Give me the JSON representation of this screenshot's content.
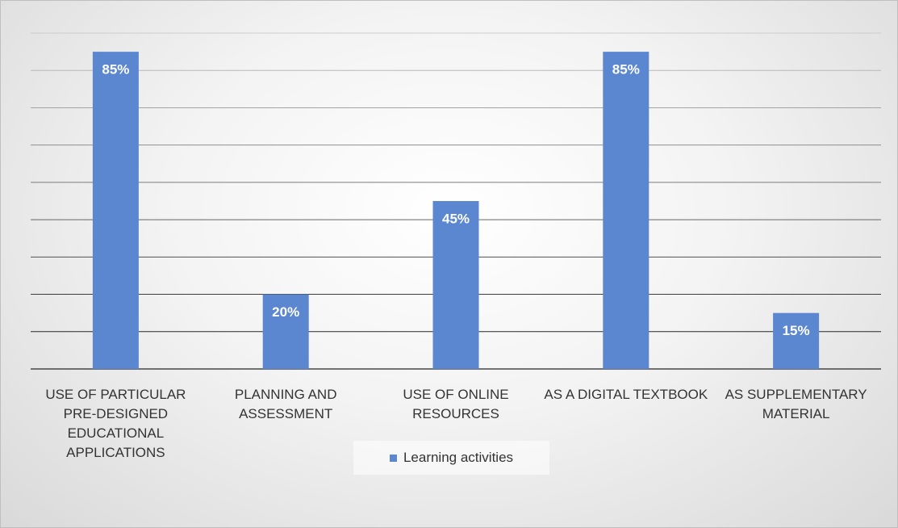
{
  "chart_data": {
    "type": "bar",
    "categories": [
      "USE OF PARTICULAR PRE-DESIGNED EDUCATIONAL APPLICATIONS",
      "PLANNING AND ASSESSMENT",
      "USE OF ONLINE RESOURCES",
      "AS A DIGITAL TEXTBOOK",
      "AS SUPPLEMENTARY MATERIAL"
    ],
    "series": [
      {
        "name": "Learning activities",
        "color": "#5b87d0",
        "values": [
          85,
          20,
          45,
          85,
          15
        ],
        "value_labels": [
          "85%",
          "20%",
          "45%",
          "85%",
          "15%"
        ]
      }
    ],
    "ylim": [
      0,
      90
    ],
    "yticks": [
      0,
      10,
      20,
      30,
      40,
      50,
      60,
      70,
      80,
      90
    ],
    "grid": true,
    "legend": "bottom"
  }
}
